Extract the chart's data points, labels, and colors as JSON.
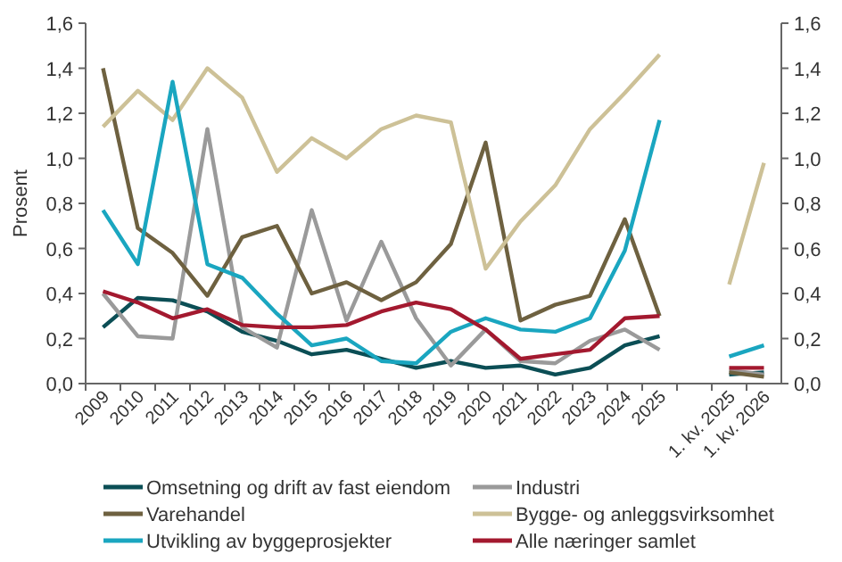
{
  "chart_data": {
    "type": "line",
    "ylabel": "Prosent",
    "categories": [
      "2009",
      "2010",
      "2011",
      "2012",
      "2013",
      "2014",
      "2015",
      "2016",
      "2017",
      "2018",
      "2019",
      "2020",
      "2021",
      "2022",
      "2023",
      "2024",
      "2025",
      null,
      "1. kv. 2025",
      "1. kv. 2026"
    ],
    "ylim": [
      0,
      1.6
    ],
    "yticks": [
      {
        "value": 0,
        "label": "0,0"
      },
      {
        "value": 0.2,
        "label": "0,2"
      },
      {
        "value": 0.4,
        "label": "0,4"
      },
      {
        "value": 0.6,
        "label": "0,6"
      },
      {
        "value": 0.8,
        "label": "0,8"
      },
      {
        "value": 1,
        "label": "1,0"
      },
      {
        "value": 1.2,
        "label": "1,2"
      },
      {
        "value": 1.4,
        "label": "1,4"
      },
      {
        "value": 1.6,
        "label": "1,6"
      }
    ],
    "y2lim": [
      0,
      1.6
    ],
    "y2ticks": [
      {
        "value": 0,
        "label": "0,0"
      },
      {
        "value": 0.2,
        "label": "0,2"
      },
      {
        "value": 0.4,
        "label": "0,4"
      },
      {
        "value": 0.6,
        "label": "0,6"
      },
      {
        "value": 0.8,
        "label": "0,8"
      },
      {
        "value": 1,
        "label": "1,0"
      },
      {
        "value": 1.2,
        "label": "1,2"
      },
      {
        "value": 1.4,
        "label": "1,4"
      },
      {
        "value": 1.6,
        "label": "1,6"
      }
    ],
    "grid": false,
    "legend": "bottom",
    "marker": "none",
    "line_style": "solid",
    "series": [
      {
        "name": "Omsetning og drift av fast eiendom",
        "color": "#0b4e55",
        "values": [
          0.25,
          0.38,
          0.37,
          0.32,
          0.23,
          0.19,
          0.13,
          0.15,
          0.11,
          0.07,
          0.1,
          0.07,
          0.08,
          0.04,
          0.07,
          0.17,
          0.21,
          null,
          0.04,
          0.05
        ]
      },
      {
        "name": "Industri",
        "color": "#9a9a9a",
        "values": [
          0.4,
          0.21,
          0.2,
          1.13,
          0.25,
          0.16,
          0.77,
          0.28,
          0.63,
          0.29,
          0.08,
          0.24,
          0.1,
          0.09,
          0.19,
          0.24,
          0.15,
          null,
          0.06,
          0.04
        ]
      },
      {
        "name": "Varehandel",
        "color": "#6e6140",
        "values": [
          1.4,
          0.69,
          0.58,
          0.39,
          0.65,
          0.7,
          0.4,
          0.45,
          0.37,
          0.45,
          0.62,
          1.07,
          0.28,
          0.35,
          0.39,
          0.73,
          0.3,
          null,
          0.05,
          0.03
        ]
      },
      {
        "name": "Bygge- og anleggsvirksomhet",
        "color": "#cdc197",
        "values": [
          1.14,
          1.3,
          1.17,
          1.4,
          1.27,
          0.94,
          1.09,
          1.0,
          1.13,
          1.19,
          1.16,
          0.51,
          0.72,
          0.88,
          1.13,
          1.29,
          1.46,
          null,
          0.44,
          0.98
        ]
      },
      {
        "name": "Utvikling av byggeprosjekter",
        "color": "#1aa6c0",
        "values": [
          0.77,
          0.53,
          1.34,
          0.53,
          0.47,
          0.31,
          0.17,
          0.2,
          0.1,
          0.09,
          0.23,
          0.29,
          0.24,
          0.23,
          0.29,
          0.59,
          1.17,
          null,
          0.12,
          0.17
        ]
      },
      {
        "name": "Alle næringer samlet",
        "color": "#a3192f",
        "values": [
          0.41,
          0.36,
          0.29,
          0.33,
          0.26,
          0.25,
          0.25,
          0.26,
          0.32,
          0.36,
          0.33,
          0.24,
          0.11,
          0.13,
          0.15,
          0.29,
          0.3,
          null,
          0.07,
          0.07
        ]
      }
    ]
  }
}
